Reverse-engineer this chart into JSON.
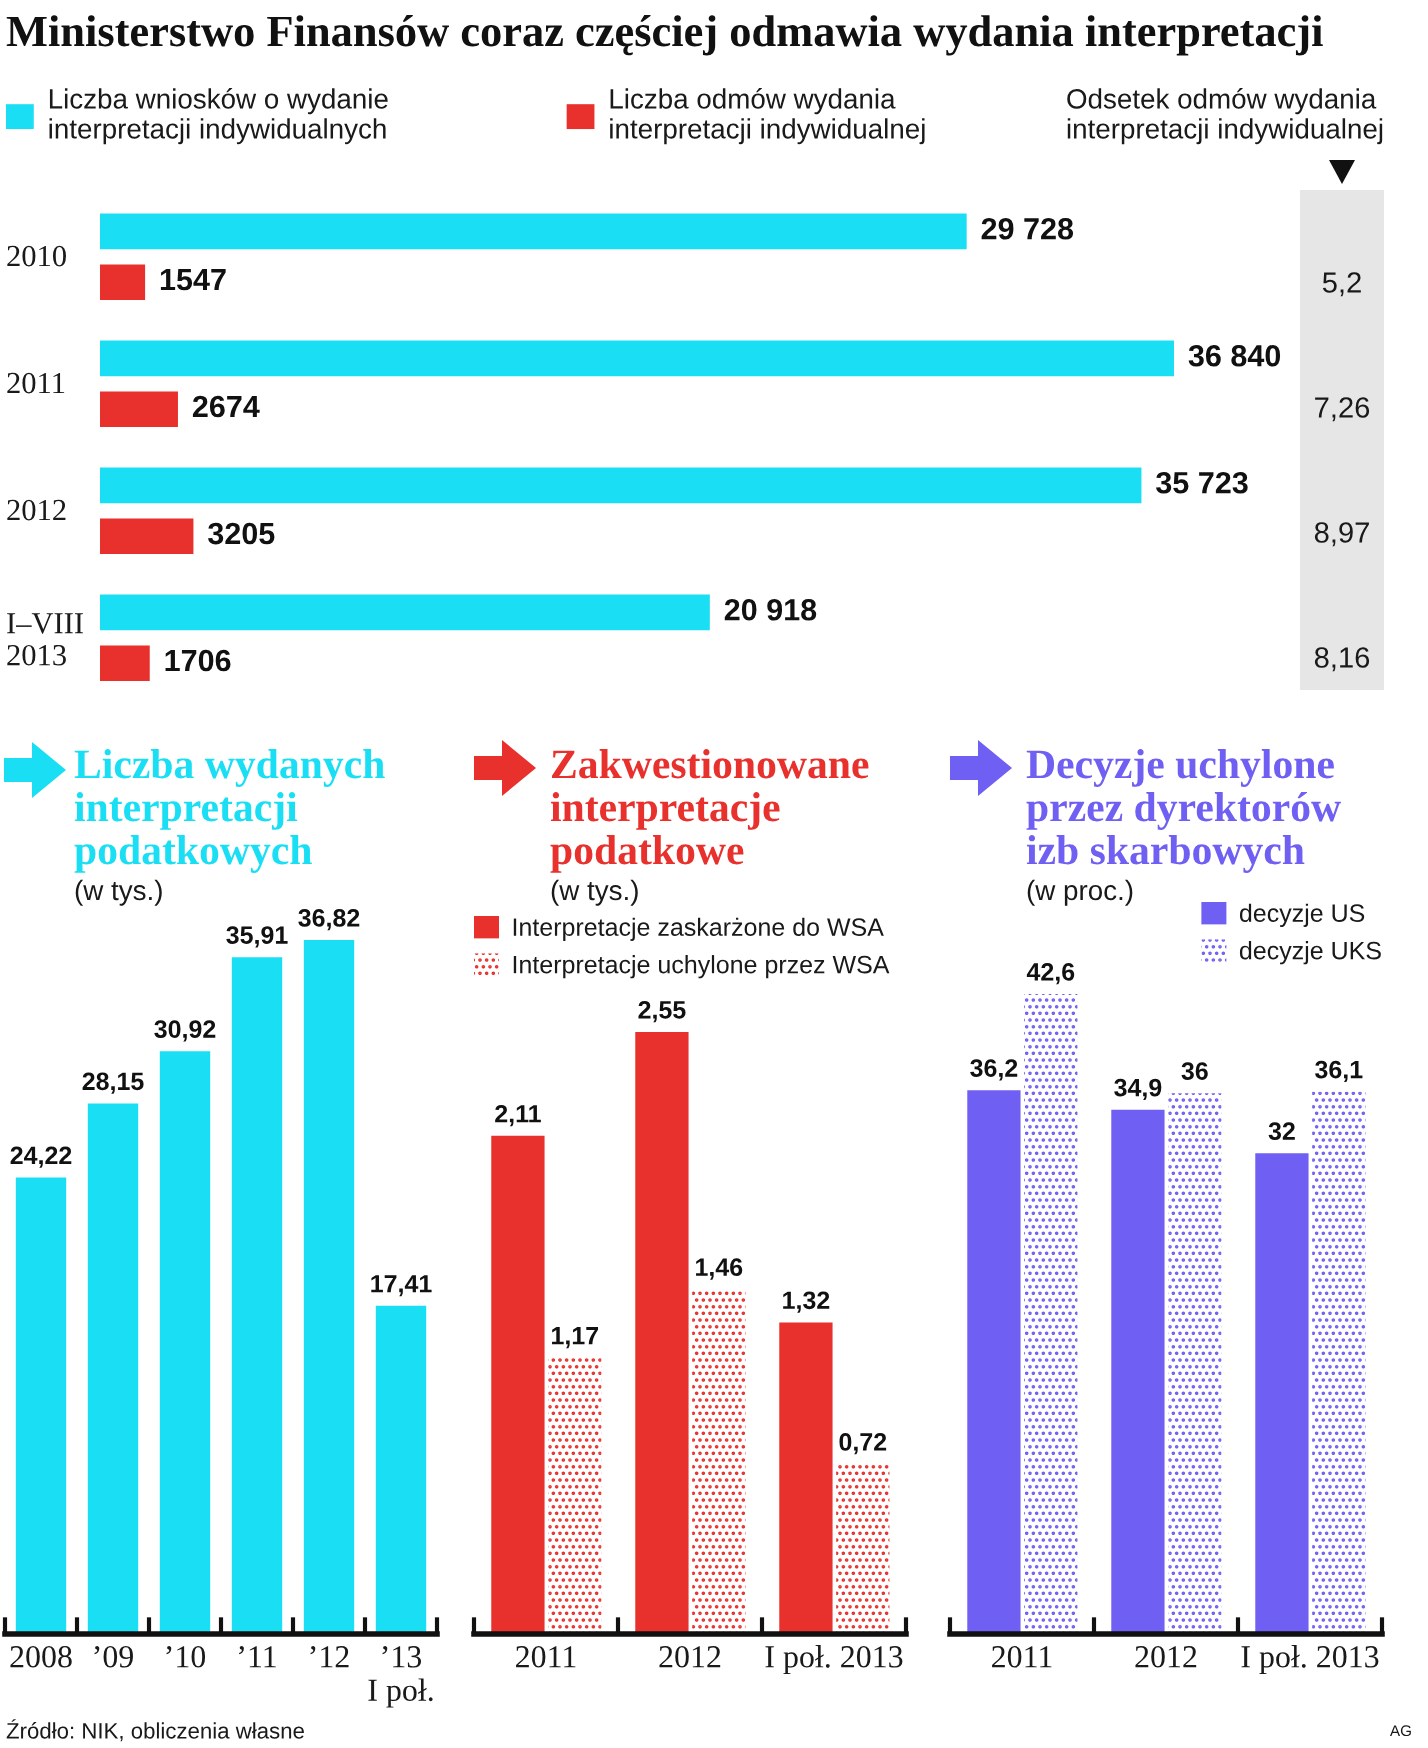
{
  "chart_data": [
    {
      "type": "bar",
      "orientation": "horizontal",
      "title": "Ministerstwo Finansów coraz częściej odmawia wydania interpretacji",
      "categories": [
        "2010",
        "2011",
        "2012",
        "I–VIII\n2013"
      ],
      "series": [
        {
          "name": "Liczba wniosków o wydanie\ninterpretacji indywidualnych",
          "color": "#1adff4",
          "values": [
            29728,
            36840,
            35723,
            20918
          ],
          "value_labels": [
            "29 728",
            "36 840",
            "35 723",
            "20 918"
          ]
        },
        {
          "name": "Liczba odmów wydania\ninterpretacji indywidualnej",
          "color": "#e8302c",
          "values": [
            1547,
            2674,
            3205,
            1706
          ],
          "value_labels": [
            "1547",
            "2674",
            "3205",
            "1706"
          ]
        }
      ],
      "legend": "top",
      "tick_labels": "y"
    },
    {
      "type": "other",
      "title": "Odsetek odmów wydania\ninterpretacji indywidualnej",
      "annotations": [
        "5,2",
        "7,26",
        "8,97",
        "8,16"
      ]
    },
    {
      "type": "bar",
      "title": "Liczba wydanych\ninterpretacji\npodatkowych",
      "subtitle": "(w tys.)",
      "categories": [
        "2008",
        "’09",
        "’10",
        "’11",
        "’12",
        "’13\nI poł."
      ],
      "series": [
        {
          "color": "#1adff4",
          "values": [
            24.22,
            28.15,
            30.92,
            35.91,
            36.82,
            17.41
          ],
          "value_labels": [
            "24,22",
            "28,15",
            "30,92",
            "35,91",
            "36,82",
            "17,41"
          ]
        }
      ],
      "tick_labels": "x"
    },
    {
      "type": "bar",
      "title": "Zakwestionowane\ninterpretacje\npodatkowe",
      "subtitle": "(w tys.)",
      "categories": [
        "2011",
        "2012",
        "I poł. 2013"
      ],
      "series": [
        {
          "name": "Interpretacje zaskarżone do WSA",
          "color": "#e8302c",
          "values": [
            2.11,
            2.55,
            1.32
          ],
          "value_labels": [
            "2,11",
            "2,55",
            "1,32"
          ]
        },
        {
          "name": "Interpretacje uchylone przez WSA",
          "color": "#e8302c",
          "line_style": "dotted",
          "values": [
            1.17,
            1.46,
            0.72
          ],
          "value_labels": [
            "1,17",
            "1,46",
            "0,72"
          ]
        }
      ],
      "legend": "top left",
      "tick_labels": "x"
    },
    {
      "type": "bar",
      "title": "Decyzje uchylone\nprzez dyrektorów\nizb skarbowych",
      "subtitle": "(w proc.)",
      "categories": [
        "2011",
        "2012",
        "I poł. 2013"
      ],
      "series": [
        {
          "name": "decyzje US",
          "color": "#6f5ff2",
          "values": [
            36.2,
            34.9,
            32
          ],
          "value_labels": [
            "36,2",
            "34,9",
            "32"
          ]
        },
        {
          "name": "decyzje UKS",
          "color": "#6f5ff2",
          "line_style": "dotted",
          "values": [
            42.6,
            36,
            36.1
          ],
          "value_labels": [
            "42,6",
            "36",
            "36,1"
          ]
        }
      ],
      "legend": "top right",
      "tick_labels": "x",
      "annotations": [
        "Źródło: NIK, obliczenia własne",
        "AG"
      ]
    }
  ]
}
